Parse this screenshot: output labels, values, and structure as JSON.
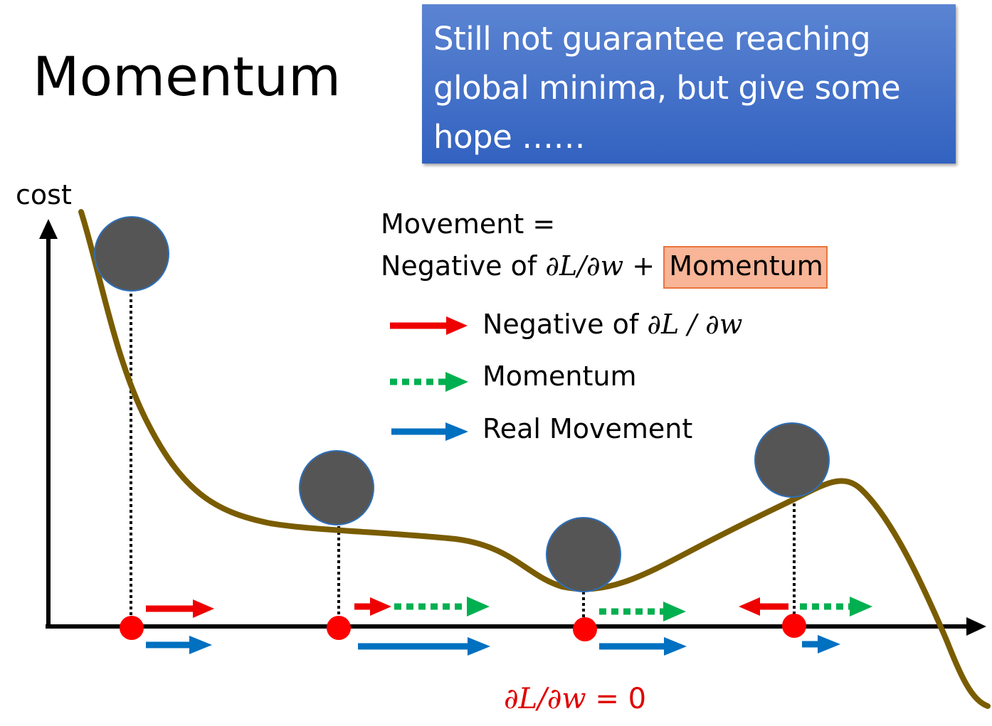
{
  "title": "Momentum",
  "callout": {
    "lines": [
      "Still not guarantee reaching",
      "global minima, but give some",
      "hope ……"
    ]
  },
  "axis": {
    "y_label": "cost"
  },
  "formula": {
    "line1": "Movement =",
    "prefix": "Negative of ",
    "math": "∂L/∂w",
    "plus": " + ",
    "highlight": "Momentum"
  },
  "legend": [
    {
      "prefix": "Negative of ",
      "math": "∂L / ∂w",
      "color": "#ee0000",
      "style": "solid"
    },
    {
      "prefix": "Momentum",
      "math": "",
      "color": "#00b050",
      "style": "dotted"
    },
    {
      "prefix": "Real Movement",
      "math": "",
      "color": "#0070c0",
      "style": "solid"
    }
  ],
  "zero_label": {
    "math": "∂L/∂w",
    "suffix": " = 0"
  },
  "colors": {
    "curve": "#7a5c00",
    "ball": "#555555",
    "point": "#ff0000",
    "gradient": "#ee0000",
    "momentum": "#00b050",
    "real": "#0070c0",
    "callout_bg": "#4472c4",
    "highlight_bg": "#f8b597"
  }
}
